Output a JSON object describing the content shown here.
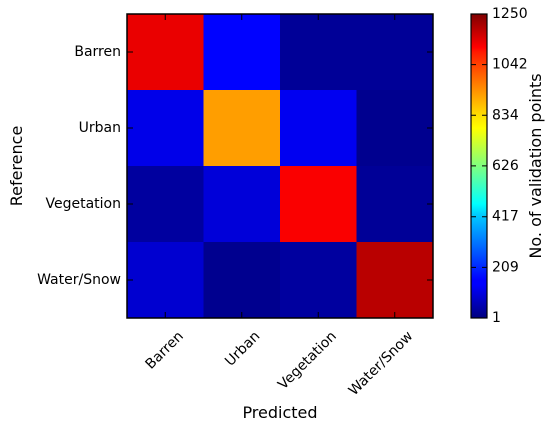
{
  "chart_data": {
    "type": "heatmap",
    "title": "",
    "xlabel": "Predicted",
    "ylabel": "Reference",
    "x_categories": [
      "Barren",
      "Urban",
      "Vegetation",
      "Water/Snow"
    ],
    "y_categories": [
      "Barren",
      "Urban",
      "Vegetation",
      "Water/Snow"
    ],
    "values": [
      [
        1120,
        160,
        30,
        30
      ],
      [
        130,
        900,
        140,
        20
      ],
      [
        40,
        110,
        1100,
        30
      ],
      [
        100,
        20,
        40,
        1180
      ]
    ],
    "colorbar": {
      "label": "No. of validation points",
      "min": 1,
      "max": 1250,
      "ticks": [
        "1250",
        "1042",
        "834",
        "626",
        "417",
        "209",
        "1"
      ],
      "colormap": "jet"
    },
    "grid": false
  }
}
